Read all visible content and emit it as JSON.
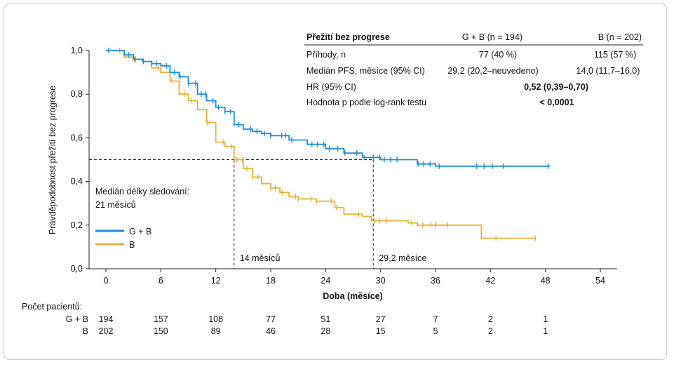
{
  "chart_data": {
    "type": "line",
    "xlabel": "Doba (měsíce)",
    "ylabel": "Pravděpodobnost přežití bez progrese",
    "xlim": [
      0,
      54
    ],
    "ylim": [
      0,
      1.0
    ],
    "x_ticks": [
      "0",
      "6",
      "12",
      "18",
      "24",
      "30",
      "36",
      "42",
      "48",
      "54"
    ],
    "y_ticks": [
      "0,0",
      "0,2",
      "0,4",
      "0,6",
      "0,8",
      "1,0"
    ],
    "legend_position": "bottom-left",
    "series": [
      {
        "name": "G + B",
        "color": "#1a8fd6",
        "points": [
          [
            0,
            1.0
          ],
          [
            2,
            0.98
          ],
          [
            3,
            0.96
          ],
          [
            4,
            0.95
          ],
          [
            5,
            0.94
          ],
          [
            6,
            0.93
          ],
          [
            7,
            0.9
          ],
          [
            8,
            0.88
          ],
          [
            9,
            0.85
          ],
          [
            10,
            0.8
          ],
          [
            11,
            0.77
          ],
          [
            12,
            0.74
          ],
          [
            13,
            0.72
          ],
          [
            14,
            0.66
          ],
          [
            15,
            0.64
          ],
          [
            16,
            0.63
          ],
          [
            17,
            0.62
          ],
          [
            18,
            0.61
          ],
          [
            20,
            0.59
          ],
          [
            22,
            0.57
          ],
          [
            24,
            0.55
          ],
          [
            26,
            0.53
          ],
          [
            28,
            0.51
          ],
          [
            30,
            0.5
          ],
          [
            34,
            0.48
          ],
          [
            36,
            0.47
          ],
          [
            48.5,
            0.47
          ]
        ],
        "censor_x": [
          0.3,
          2.5,
          3.2,
          4.1,
          5.0,
          5.5,
          6.6,
          7.5,
          8.1,
          9.0,
          9.8,
          10.4,
          10.9,
          11.7,
          12.3,
          13.0,
          13.6,
          14.5,
          15.8,
          16.5,
          17.3,
          18.0,
          19.2,
          19.6,
          20.3,
          22.5,
          23.1,
          23.8,
          24.4,
          25.3,
          26.1,
          27.4,
          28.2,
          29.2,
          29.9,
          30.4,
          31.1,
          31.8,
          34.1,
          34.7,
          35.4,
          36.4,
          40.5,
          41.3,
          42.2,
          43.4,
          48.3
        ]
      },
      {
        "name": "B",
        "color": "#e3b23c",
        "points": [
          [
            0,
            1.0
          ],
          [
            2,
            0.97
          ],
          [
            3,
            0.96
          ],
          [
            4,
            0.95
          ],
          [
            5,
            0.92
          ],
          [
            6,
            0.9
          ],
          [
            7,
            0.86
          ],
          [
            8,
            0.8
          ],
          [
            9,
            0.77
          ],
          [
            10,
            0.73
          ],
          [
            11,
            0.67
          ],
          [
            12,
            0.58
          ],
          [
            13,
            0.56
          ],
          [
            14,
            0.5
          ],
          [
            15,
            0.46
          ],
          [
            16,
            0.42
          ],
          [
            17,
            0.39
          ],
          [
            18,
            0.37
          ],
          [
            19,
            0.35
          ],
          [
            20,
            0.33
          ],
          [
            21,
            0.32
          ],
          [
            23,
            0.31
          ],
          [
            25,
            0.28
          ],
          [
            26,
            0.25
          ],
          [
            28,
            0.24
          ],
          [
            29,
            0.22
          ],
          [
            33,
            0.21
          ],
          [
            34,
            0.2
          ],
          [
            40,
            0.2
          ],
          [
            41,
            0.14
          ],
          [
            47,
            0.14
          ]
        ],
        "censor_x": [
          1.5,
          3.1,
          5.7,
          7.2,
          8.6,
          9.3,
          11.1,
          12.8,
          13.7,
          14.3,
          14.9,
          15.4,
          16.0,
          16.6,
          18.0,
          18.5,
          19.3,
          20.7,
          21.0,
          22.4,
          23.0,
          24.6,
          25.2,
          27.6,
          29.3,
          29.9,
          30.6,
          33.4,
          34.6,
          35.5,
          36.0,
          37.3,
          42.6,
          46.9
        ]
      }
    ],
    "median_lines": [
      {
        "x": 14,
        "y": 0.5,
        "label": "14 měsíců"
      },
      {
        "x": 29.2,
        "y": 0.5,
        "label": "29,2 měsíce"
      }
    ],
    "annotation_lines": [
      "Medián délky sledování:",
      "21 měsíců"
    ]
  },
  "stats_table": {
    "header": [
      "Přežití bez progrese",
      "G + B (n = 194)",
      "B (n = 202)"
    ],
    "rows": [
      [
        "Příhody, n",
        "77 (40 %)",
        "115 (57 %)"
      ],
      [
        "Medián PFS, měsíce (95% CI)",
        "29,2 (20,2–neuvedeno)",
        "14,0 (11,7–16,0)"
      ],
      [
        "HR (95% CI)",
        "0,52 (0,39–0,70)",
        ""
      ],
      [
        "Hodnota p podle log-rank testu",
        "< 0,0001",
        ""
      ]
    ]
  },
  "risk_table": {
    "title": "Počet pacientů:",
    "rows": [
      {
        "label": "G + B",
        "values": [
          "194",
          "157",
          "108",
          "77",
          "51",
          "27",
          "7",
          "2",
          "1"
        ]
      },
      {
        "label": "B",
        "values": [
          "202",
          "150",
          "89",
          "46",
          "28",
          "15",
          "5",
          "2",
          "1"
        ]
      }
    ]
  }
}
